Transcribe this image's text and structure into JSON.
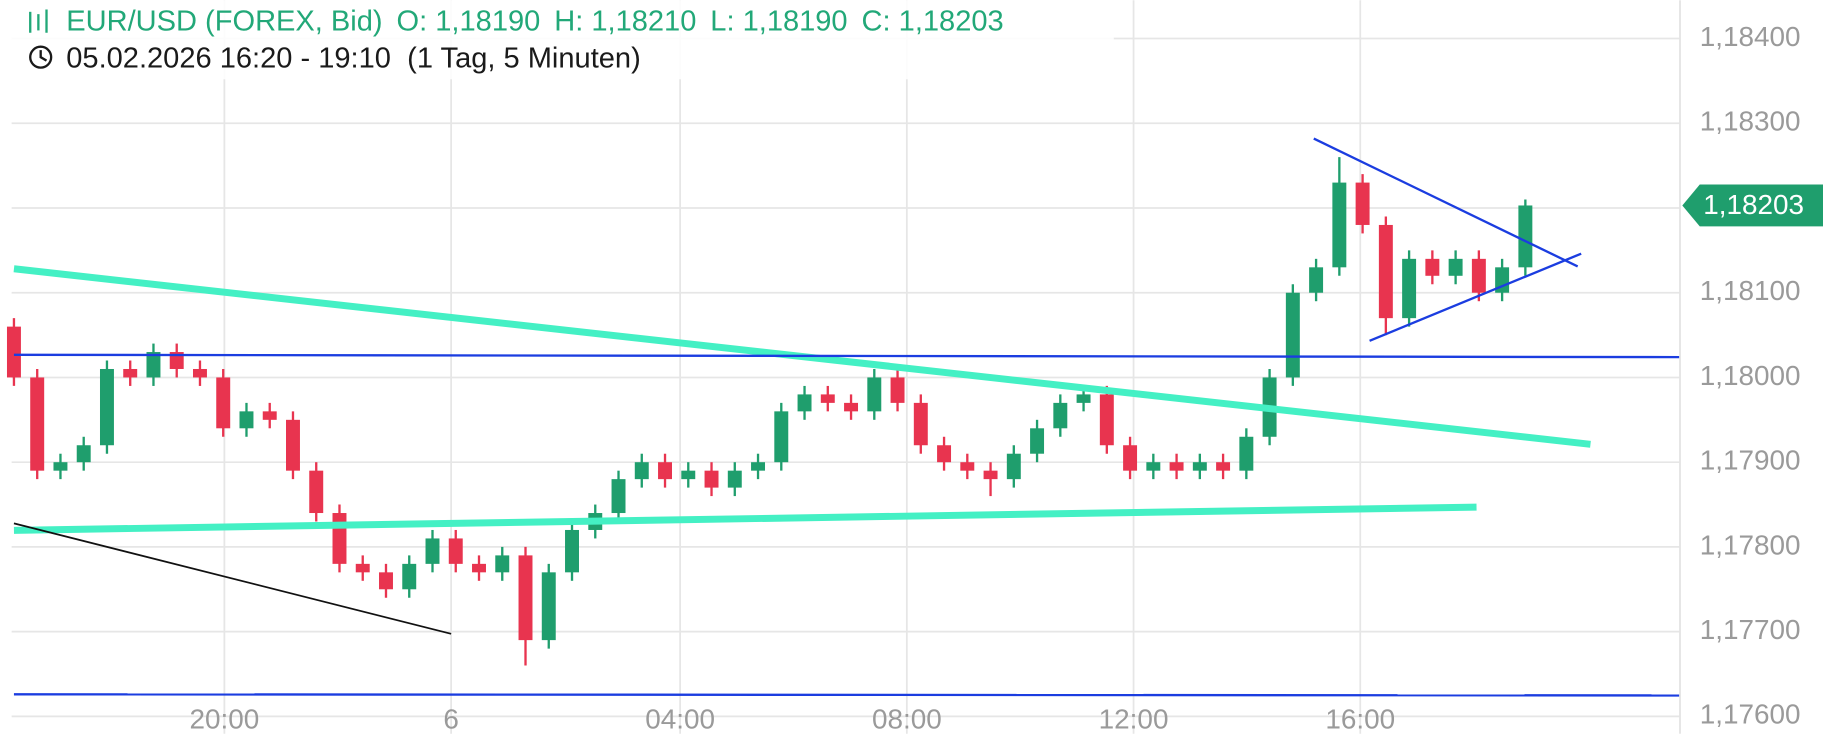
{
  "chart_data": {
    "type": "candlestick",
    "header": {
      "symbol": "EUR/USD (FOREX, Bid)",
      "open": "O: 1,18190",
      "high": "H: 1,18210",
      "low": "L: 1,18190",
      "close": "C: 1,18203",
      "period": "05.02.2026 16:20 - 19:10",
      "interval": "(1 Tag, 5 Minuten)"
    },
    "up_color": "#1f9e6d",
    "down_color": "#e8344f",
    "open": [
      1.1806,
      1.18,
      1.1789,
      1.179,
      1.1792,
      1.1801,
      1.18,
      1.1803,
      1.1801,
      1.18,
      1.1794,
      1.1796,
      1.1795,
      1.1789,
      1.1784,
      1.1778,
      1.1777,
      1.1775,
      1.1778,
      1.1781,
      1.1778,
      1.1777,
      1.1779,
      1.1769,
      1.1777,
      1.1782,
      1.1784,
      1.1788,
      1.179,
      1.1788,
      1.1789,
      1.1787,
      1.1789,
      1.179,
      1.1796,
      1.1798,
      1.1797,
      1.1796,
      1.18,
      1.1797,
      1.1792,
      1.179,
      1.1789,
      1.1788,
      1.1791,
      1.1794,
      1.1797,
      1.1798,
      1.1792,
      1.1789,
      1.179,
      1.1789,
      1.179,
      1.1789,
      1.1793,
      1.18,
      1.181,
      1.1813,
      1.1823,
      1.1818,
      1.1807,
      1.1814,
      1.1812,
      1.1814,
      1.181,
      1.1813
    ],
    "high": [
      1.1807,
      1.1801,
      1.1791,
      1.1793,
      1.1802,
      1.1802,
      1.1804,
      1.1804,
      1.1802,
      1.1801,
      1.1797,
      1.1797,
      1.1796,
      1.179,
      1.1785,
      1.1779,
      1.1778,
      1.1779,
      1.1782,
      1.1782,
      1.1779,
      1.178,
      1.178,
      1.1778,
      1.1783,
      1.1785,
      1.1789,
      1.1791,
      1.1791,
      1.179,
      1.179,
      1.179,
      1.1791,
      1.1797,
      1.1799,
      1.1799,
      1.1798,
      1.1801,
      1.1801,
      1.1798,
      1.1793,
      1.1791,
      1.179,
      1.1792,
      1.1795,
      1.1798,
      1.1799,
      1.1799,
      1.1793,
      1.1791,
      1.1791,
      1.1791,
      1.1791,
      1.1794,
      1.1801,
      1.1811,
      1.1814,
      1.1826,
      1.1824,
      1.1819,
      1.1815,
      1.1815,
      1.1815,
      1.1815,
      1.1814,
      1.1821
    ],
    "low": [
      1.1799,
      1.1788,
      1.1788,
      1.1789,
      1.1791,
      1.1799,
      1.1799,
      1.18,
      1.1799,
      1.1793,
      1.1793,
      1.1794,
      1.1788,
      1.1783,
      1.1777,
      1.1776,
      1.1774,
      1.1774,
      1.1777,
      1.1777,
      1.1776,
      1.1776,
      1.1766,
      1.1768,
      1.1776,
      1.1781,
      1.1783,
      1.1787,
      1.1787,
      1.1787,
      1.1786,
      1.1786,
      1.1788,
      1.1789,
      1.1795,
      1.1796,
      1.1795,
      1.1795,
      1.1796,
      1.1791,
      1.1789,
      1.1788,
      1.1786,
      1.1787,
      1.179,
      1.1793,
      1.1796,
      1.1791,
      1.1788,
      1.1788,
      1.1788,
      1.1788,
      1.1788,
      1.1788,
      1.1792,
      1.1799,
      1.1809,
      1.1812,
      1.1817,
      1.1805,
      1.1806,
      1.1811,
      1.1811,
      1.1809,
      1.1809,
      1.1812
    ],
    "close": [
      1.18,
      1.1789,
      1.179,
      1.1792,
      1.1801,
      1.18,
      1.1803,
      1.1801,
      1.18,
      1.1794,
      1.1796,
      1.1795,
      1.1789,
      1.1784,
      1.1778,
      1.1777,
      1.1775,
      1.1778,
      1.1781,
      1.1778,
      1.1777,
      1.1779,
      1.1769,
      1.1777,
      1.1782,
      1.1784,
      1.1788,
      1.179,
      1.1788,
      1.1789,
      1.1787,
      1.1789,
      1.179,
      1.1796,
      1.1798,
      1.1797,
      1.1796,
      1.18,
      1.1797,
      1.1792,
      1.179,
      1.1789,
      1.1788,
      1.1791,
      1.1794,
      1.1797,
      1.1798,
      1.1792,
      1.1789,
      1.179,
      1.1789,
      1.179,
      1.1789,
      1.1793,
      1.18,
      1.181,
      1.1813,
      1.1823,
      1.1818,
      1.1807,
      1.1814,
      1.1812,
      1.1814,
      1.181,
      1.1813,
      1.18203
    ],
    "xlim": [
      -0.6,
      71.65
    ],
    "xticks": [
      {
        "value": 9.05,
        "label": "20:00"
      },
      {
        "value": 18.8,
        "label": "6"
      },
      {
        "value": 28.65,
        "label": "04:00"
      },
      {
        "value": 38.4,
        "label": "08:00"
      },
      {
        "value": 48.15,
        "label": "12:00"
      },
      {
        "value": 57.9,
        "label": "16:00"
      }
    ],
    "ylim": [
      1.176,
      1.184
    ],
    "yticks": [
      {
        "value": 1.176,
        "label": "1,17600"
      },
      {
        "value": 1.177,
        "label": "1,17700"
      },
      {
        "value": 1.178,
        "label": "1,17800"
      },
      {
        "value": 1.179,
        "label": "1,17900"
      },
      {
        "value": 1.18,
        "label": "1,18000"
      },
      {
        "value": 1.181,
        "label": "1,18100"
      },
      {
        "value": 1.182,
        "label": "1,18200"
      },
      {
        "value": 1.183,
        "label": "1,18300"
      },
      {
        "value": 1.184,
        "label": "1,18400"
      }
    ],
    "last_price": {
      "value": 1.18203,
      "label": "1,18203",
      "color": "#1f9e6d"
    },
    "grid": true
  }
}
